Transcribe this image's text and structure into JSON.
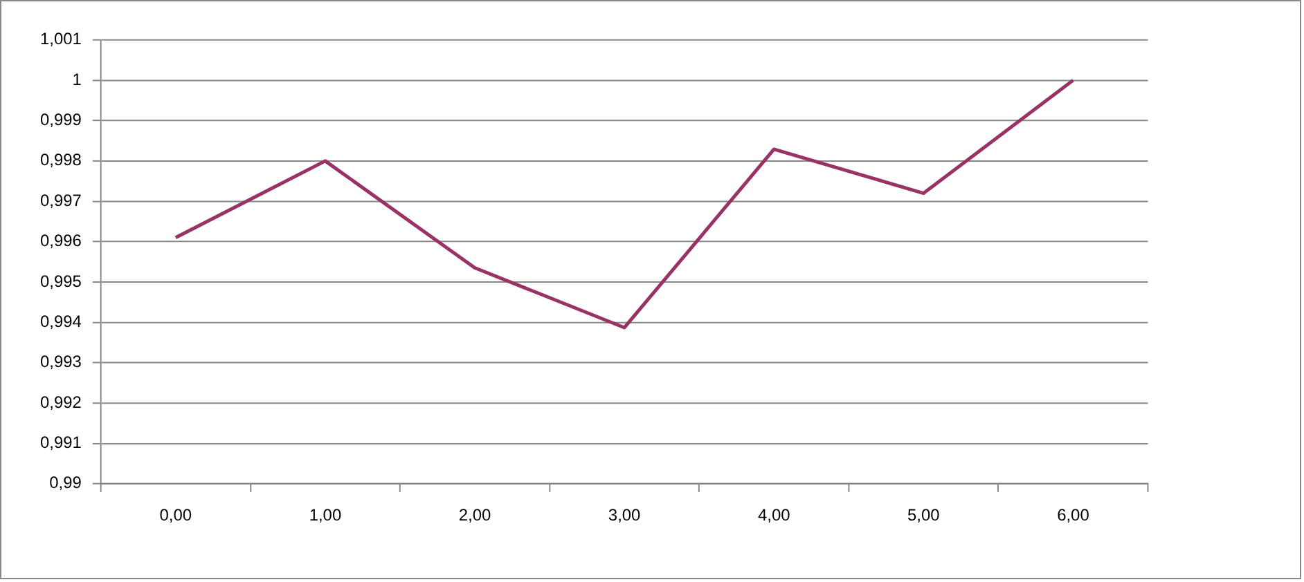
{
  "chart_data": {
    "type": "line",
    "categories": [
      "0,00",
      "1,00",
      "2,00",
      "3,00",
      "4,00",
      "5,00",
      "6,00"
    ],
    "series": [
      {
        "color": "#993366",
        "values": [
          0.9961,
          0.998,
          0.99535,
          0.99387,
          0.99829,
          0.9972,
          1.0
        ]
      }
    ],
    "ylim": [
      0.99,
      1.001
    ],
    "yticks": [
      {
        "value": 0.99,
        "label": "0,99"
      },
      {
        "value": 0.991,
        "label": "0,991"
      },
      {
        "value": 0.992,
        "label": "0,992"
      },
      {
        "value": 0.993,
        "label": "0,993"
      },
      {
        "value": 0.994,
        "label": "0,994"
      },
      {
        "value": 0.995,
        "label": "0,995"
      },
      {
        "value": 0.996,
        "label": "0,996"
      },
      {
        "value": 0.997,
        "label": "0,997"
      },
      {
        "value": 0.998,
        "label": "0,998"
      },
      {
        "value": 0.999,
        "label": "0,999"
      },
      {
        "value": 1,
        "label": "1"
      },
      {
        "value": 1.001,
        "label": "1,001"
      }
    ],
    "grid": "y",
    "legend": false,
    "marker": "none",
    "line_style": "solid"
  }
}
